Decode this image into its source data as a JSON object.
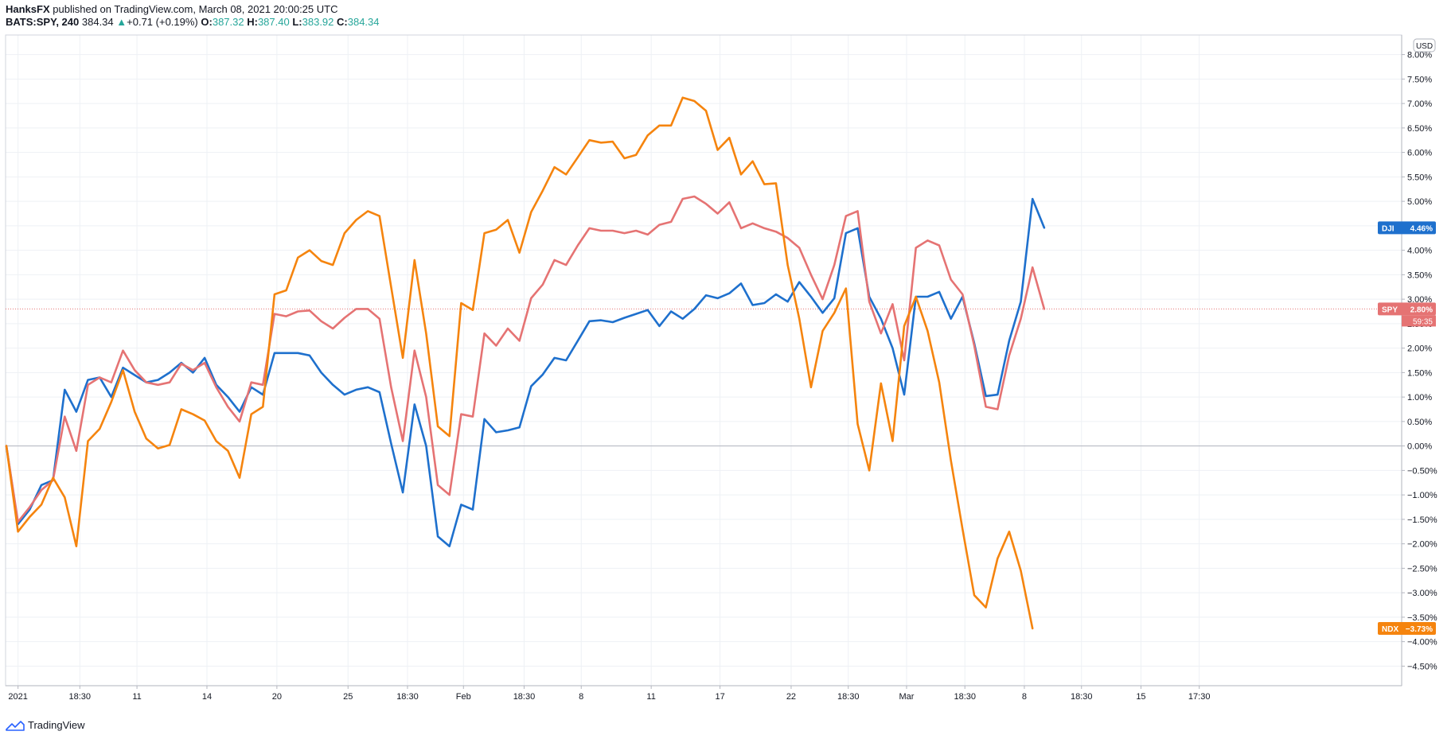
{
  "header": {
    "author": "HanksFX",
    "published_text": "published on TradingView.com, March 08, 2021 20:00:25 UTC",
    "symbol": "BATS:SPY, 240",
    "last": "384.34",
    "change": "+0.71 (+0.19%)",
    "open_label": "O:",
    "open": "387.32",
    "high_label": "H:",
    "high": "387.40",
    "low_label": "L:",
    "low": "383.92",
    "close_label": "C:",
    "close": "384.34"
  },
  "footer": {
    "brand": "TradingView",
    "logo_icon": "tradingview-logo-icon"
  },
  "chart_data": {
    "type": "line",
    "currency_label": "USD",
    "y_range": [
      -4.9,
      8.4
    ],
    "y_ticks": [
      8.0,
      7.5,
      7.0,
      6.5,
      6.0,
      5.5,
      5.0,
      4.5,
      4.0,
      3.5,
      3.0,
      2.5,
      2.0,
      1.5,
      1.0,
      0.5,
      0.0,
      -0.5,
      -1.0,
      -1.5,
      -2.0,
      -2.5,
      -3.0,
      -3.5,
      -4.0,
      -4.5
    ],
    "y_tick_labels": [
      "8.00%",
      "7.50%",
      "7.00%",
      "6.50%",
      "6.00%",
      "5.50%",
      "5.00%",
      "4.50%",
      "4.00%",
      "3.50%",
      "3.00%",
      "2.50%",
      "2.00%",
      "1.50%",
      "1.00%",
      "0.50%",
      "0.00%",
      "−0.50%",
      "−1.00%",
      "−1.50%",
      "−2.00%",
      "−2.50%",
      "−3.00%",
      "−3.50%",
      "−4.00%",
      "−4.50%"
    ],
    "x_range": [
      0,
      107
    ],
    "x_ticks": [
      {
        "x": 1,
        "label": "2021"
      },
      {
        "x": 6.3,
        "label": "18:30"
      },
      {
        "x": 11.2,
        "label": "11"
      },
      {
        "x": 17.2,
        "label": "14"
      },
      {
        "x": 23.2,
        "label": "20"
      },
      {
        "x": 29.3,
        "label": "25"
      },
      {
        "x": 34.4,
        "label": "18:30"
      },
      {
        "x": 39.2,
        "label": "Feb"
      },
      {
        "x": 44.4,
        "label": "18:30"
      },
      {
        "x": 49.3,
        "label": "8"
      },
      {
        "x": 55.3,
        "label": "11"
      },
      {
        "x": 61.2,
        "label": "17"
      },
      {
        "x": 67.3,
        "label": "22"
      },
      {
        "x": 72.2,
        "label": "18:30"
      },
      {
        "x": 77.2,
        "label": "Mar"
      },
      {
        "x": 82.2,
        "label": "18:30"
      },
      {
        "x": 87.3,
        "label": "8"
      },
      {
        "x": 92.2,
        "label": "18:30"
      },
      {
        "x": 97.3,
        "label": "15"
      },
      {
        "x": 102.3,
        "label": "17:30"
      }
    ],
    "zero_line": 0.0,
    "current_price_line": 2.8,
    "series": [
      {
        "name": "DJI",
        "color": "#1e70cd",
        "last_label": "4.46%",
        "values": [
          0.0,
          -1.6,
          -1.3,
          -0.8,
          -0.7,
          1.15,
          0.7,
          1.35,
          1.4,
          1.0,
          1.6,
          1.45,
          1.3,
          1.35,
          1.5,
          1.7,
          1.5,
          1.8,
          1.25,
          1.0,
          0.7,
          1.2,
          1.05,
          1.9,
          1.9,
          1.9,
          1.85,
          1.5,
          1.25,
          1.05,
          1.15,
          1.2,
          1.1,
          0.05,
          -0.95,
          0.85,
          0.0,
          -1.85,
          -2.05,
          -1.2,
          -1.3,
          0.55,
          0.28,
          0.32,
          0.38,
          1.22,
          1.46,
          1.8,
          1.75,
          2.15,
          2.55,
          2.57,
          2.53,
          2.62,
          2.7,
          2.78,
          2.45,
          2.75,
          2.6,
          2.8,
          3.08,
          3.02,
          3.12,
          3.32,
          2.88,
          2.92,
          3.1,
          2.95,
          3.35,
          3.05,
          2.72,
          3.02,
          4.35,
          4.45,
          3.05,
          2.6,
          2.0,
          1.05,
          3.05,
          3.05,
          3.15,
          2.6,
          3.05,
          2.1,
          1.02,
          1.05,
          2.15,
          2.95,
          5.05,
          4.46
        ]
      },
      {
        "name": "SPY",
        "color": "#e57373",
        "last_label": "2.80%",
        "sub_label": "59:35",
        "values": [
          0.0,
          -1.55,
          -1.25,
          -0.9,
          -0.7,
          0.6,
          -0.1,
          1.25,
          1.4,
          1.3,
          1.95,
          1.55,
          1.3,
          1.25,
          1.3,
          1.68,
          1.55,
          1.7,
          1.2,
          0.8,
          0.5,
          1.3,
          1.25,
          2.7,
          2.65,
          2.75,
          2.77,
          2.55,
          2.4,
          2.62,
          2.8,
          2.8,
          2.6,
          1.2,
          0.1,
          1.95,
          1.0,
          -0.8,
          -1.0,
          0.65,
          0.6,
          2.3,
          2.05,
          2.4,
          2.15,
          3.02,
          3.3,
          3.8,
          3.7,
          4.1,
          4.45,
          4.4,
          4.4,
          4.35,
          4.4,
          4.32,
          4.52,
          4.58,
          5.05,
          5.1,
          4.95,
          4.75,
          4.98,
          4.45,
          4.55,
          4.45,
          4.38,
          4.25,
          4.05,
          3.5,
          3.0,
          3.7,
          4.7,
          4.8,
          2.95,
          2.3,
          2.9,
          1.75,
          4.05,
          4.2,
          4.1,
          3.4,
          3.1,
          2.05,
          0.8,
          0.75,
          1.85,
          2.6,
          3.65,
          2.8
        ]
      },
      {
        "name": "NDX",
        "color": "#f5840e",
        "last_label": "−3.73%",
        "values": [
          0.0,
          -1.75,
          -1.45,
          -1.2,
          -0.65,
          -1.05,
          -2.05,
          0.1,
          0.35,
          0.9,
          1.55,
          0.7,
          0.15,
          -0.05,
          0.02,
          0.75,
          0.65,
          0.52,
          0.1,
          -0.1,
          -0.65,
          0.65,
          0.8,
          3.1,
          3.18,
          3.85,
          4.0,
          3.78,
          3.7,
          4.35,
          4.62,
          4.8,
          4.7,
          3.25,
          1.8,
          3.8,
          2.3,
          0.4,
          0.2,
          2.92,
          2.78,
          4.35,
          4.42,
          4.62,
          3.95,
          4.78,
          5.22,
          5.7,
          5.55,
          5.9,
          6.25,
          6.2,
          6.22,
          5.88,
          5.95,
          6.35,
          6.55,
          6.55,
          7.12,
          7.05,
          6.85,
          6.05,
          6.3,
          5.55,
          5.82,
          5.35,
          5.37,
          3.7,
          2.6,
          1.2,
          2.35,
          2.72,
          3.22,
          0.45,
          -0.5,
          1.28,
          0.1,
          2.45,
          3.05,
          2.35,
          1.3,
          -0.3,
          -1.7,
          -3.05,
          -3.3,
          -2.3,
          -1.75,
          -2.55,
          -3.73
        ]
      }
    ]
  }
}
